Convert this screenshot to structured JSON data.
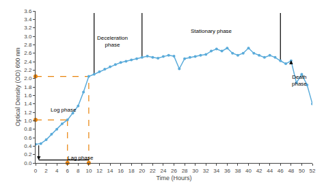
{
  "chart_data": {
    "type": "line",
    "xlabel": "Time (Hours)",
    "ylabel": "Optical Density (OD) 600 nm",
    "x": [
      0,
      1,
      2,
      3,
      4,
      5,
      6,
      7,
      8,
      9,
      10,
      11,
      12,
      13,
      14,
      15,
      16,
      17,
      18,
      19,
      20,
      21,
      22,
      23,
      24,
      25,
      26,
      27,
      28,
      29,
      30,
      31,
      32,
      33,
      34,
      35,
      36,
      37,
      38,
      39,
      40,
      41,
      42,
      43,
      44,
      45,
      46,
      47,
      48,
      49,
      50,
      51,
      52
    ],
    "values": [
      0.44,
      0.46,
      0.55,
      0.68,
      0.8,
      0.93,
      1.02,
      1.18,
      1.35,
      1.68,
      2.05,
      2.1,
      2.16,
      2.22,
      2.28,
      2.33,
      2.38,
      2.41,
      2.44,
      2.47,
      2.5,
      2.53,
      2.5,
      2.48,
      2.52,
      2.55,
      2.53,
      2.23,
      2.47,
      2.5,
      2.52,
      2.55,
      2.57,
      2.65,
      2.7,
      2.65,
      2.72,
      2.6,
      2.55,
      2.6,
      2.72,
      2.6,
      2.55,
      2.5,
      2.55,
      2.5,
      2.42,
      2.35,
      2.42,
      1.9,
      2.1,
      1.85,
      1.4
    ],
    "color": "#5aabda",
    "marker": "circle",
    "line_style": "solid",
    "xlim": [
      0,
      52
    ],
    "ylim": [
      0.0,
      3.6
    ],
    "xticks": [
      0,
      2,
      4,
      6,
      8,
      10,
      12,
      14,
      16,
      18,
      20,
      22,
      24,
      26,
      28,
      30,
      32,
      34,
      36,
      38,
      40,
      42,
      44,
      46,
      48,
      50,
      52
    ],
    "yticks": [
      {
        "value": 0.0,
        "label": "0.0"
      },
      0.2,
      0.4,
      0.6,
      0.8,
      {
        "value": 1.0,
        "label": "1.0"
      },
      1.2,
      1.4,
      1.6,
      1.8,
      {
        "value": 2.0,
        "label": "2.0"
      },
      2.2,
      2.4,
      2.6,
      2.8,
      {
        "value": 3.0,
        "label": "3.0"
      },
      3.2,
      3.4,
      3.6
    ],
    "grid": false,
    "annotations": [
      {
        "text": "Lag phase",
        "x": 8.5,
        "y": 0.12
      },
      {
        "text": "Log phase",
        "x": 5.3,
        "y": 1.25
      },
      {
        "text": "Deceleration\nphase",
        "x": 14.5,
        "y": 2.88
      },
      {
        "text": "Stationary phase",
        "x": 33,
        "y": 3.12
      },
      {
        "text": "Death\nphase",
        "x": 49.5,
        "y": 1.95
      }
    ],
    "reference_lines": [
      {
        "x": [
          0,
          6
        ],
        "y": [
          1.02,
          1.02
        ],
        "color": "#e8820a",
        "line_style": "dashed"
      },
      {
        "x": [
          0,
          10
        ],
        "y": [
          2.05,
          2.05
        ],
        "color": "#e8820a",
        "line_style": "dashed"
      },
      {
        "x": [
          6,
          6
        ],
        "y": [
          0,
          1.02
        ],
        "color": "#e8820a",
        "line_style": "dashed"
      },
      {
        "x": [
          10,
          10
        ],
        "y": [
          0,
          2.05
        ],
        "color": "#e8820a",
        "line_style": "dashed"
      },
      {
        "x": [
          0.6,
          10
        ],
        "y": [
          0.07,
          0.07
        ],
        "color": "#000000",
        "line_style": "solid"
      },
      {
        "x": [
          11,
          11
        ],
        "y": [
          2.1,
          3.55
        ],
        "color": "#000000",
        "line_style": "solid"
      },
      {
        "x": [
          20,
          20
        ],
        "y": [
          2.5,
          3.55
        ],
        "color": "#000000",
        "line_style": "solid"
      },
      {
        "x": [
          46,
          46
        ],
        "y": [
          2.42,
          3.55
        ],
        "color": "#000000",
        "line_style": "solid"
      }
    ],
    "reference_points": {
      "x": [
        6,
        10,
        0,
        0
      ],
      "y": [
        0,
        0,
        1.02,
        2.05
      ],
      "color": "#e8820a",
      "marker": "circle"
    },
    "arrows": [
      {
        "x": 0.6,
        "y_tail": 0.44,
        "y_head": 0.07,
        "color": "#000000"
      },
      {
        "x": 48,
        "y_tail": 2.35,
        "y_head": 2.43,
        "color": "#000000"
      }
    ]
  }
}
